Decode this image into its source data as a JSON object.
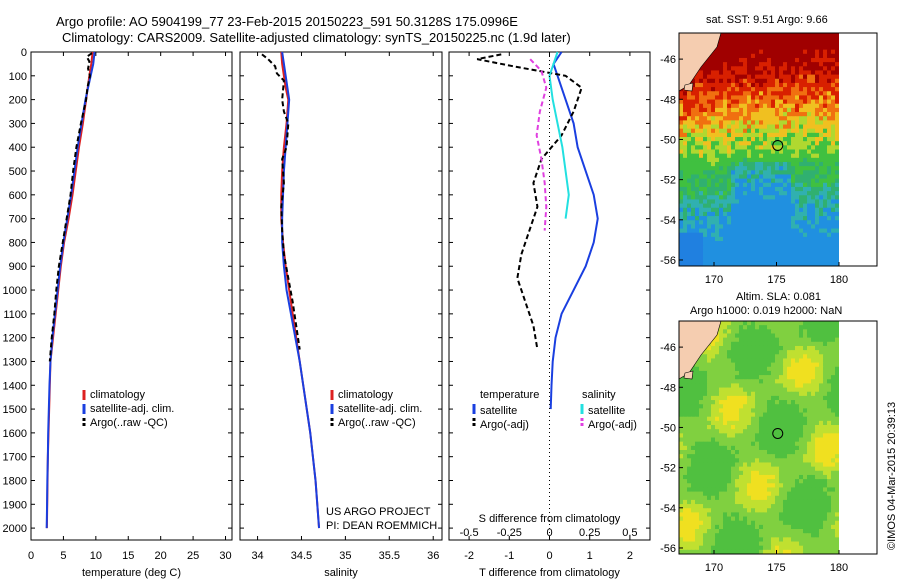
{
  "header": {
    "line1": "Argo profile: AO 5904199_77 23-Feb-2015 20150223_591 50.3128S 175.0996E",
    "line2": "Climatology: CARS2009. Satellite-adjusted climatology: synTS_20150225.nc (1.9d later)"
  },
  "colors": {
    "climatology": "#dd2020",
    "satellite_adj": "#1a3fe0",
    "argo": "#000000",
    "salinity_satellite": "#22e0e0",
    "salinity_argo": "#e040e0"
  },
  "chart_data": [
    {
      "type": "line",
      "xlabel": "temperature (deg C)",
      "xlim": [
        0,
        31
      ],
      "xticks": [
        "0",
        "5",
        "10",
        "15",
        "20",
        "25",
        "30"
      ],
      "ylim": [
        2050,
        0
      ],
      "yticks": [
        "0",
        "100",
        "200",
        "300",
        "400",
        "500",
        "600",
        "700",
        "800",
        "900",
        "1000",
        "1100",
        "1200",
        "1300",
        "1400",
        "1500",
        "1600",
        "1700",
        "1800",
        "1900",
        "2000"
      ],
      "legend": [
        "climatology",
        "satellite-adj. clim.",
        "Argo(..raw -QC)"
      ],
      "series": [
        {
          "name": "climatology",
          "points": [
            [
              9.5,
              0
            ],
            [
              9.3,
              50
            ],
            [
              9.0,
              100
            ],
            [
              8.5,
              200
            ],
            [
              8.0,
              300
            ],
            [
              7.4,
              400
            ],
            [
              6.9,
              500
            ],
            [
              6.4,
              600
            ],
            [
              5.8,
              700
            ],
            [
              5.1,
              800
            ],
            [
              4.6,
              900
            ],
            [
              4.2,
              1000
            ],
            [
              3.8,
              1100
            ],
            [
              3.4,
              1200
            ],
            [
              3.0,
              1300
            ],
            [
              2.9,
              1400
            ],
            [
              2.8,
              1500
            ],
            [
              2.7,
              1600
            ],
            [
              2.6,
              1700
            ],
            [
              2.55,
              1800
            ],
            [
              2.5,
              1900
            ],
            [
              2.45,
              2000
            ]
          ]
        },
        {
          "name": "satellite-adj. clim.",
          "points": [
            [
              9.8,
              0
            ],
            [
              9.6,
              50
            ],
            [
              9.2,
              100
            ],
            [
              8.4,
              200
            ],
            [
              7.8,
              300
            ],
            [
              7.2,
              400
            ],
            [
              6.7,
              500
            ],
            [
              6.2,
              600
            ],
            [
              5.6,
              700
            ],
            [
              5.0,
              800
            ],
            [
              4.5,
              900
            ],
            [
              4.1,
              1000
            ],
            [
              3.7,
              1100
            ],
            [
              3.3,
              1200
            ],
            [
              3.0,
              1300
            ],
            [
              2.85,
              1400
            ],
            [
              2.75,
              1500
            ],
            [
              2.65,
              1600
            ],
            [
              2.6,
              1700
            ],
            [
              2.52,
              1800
            ],
            [
              2.48,
              1900
            ],
            [
              2.42,
              2000
            ]
          ]
        },
        {
          "name": "Argo(..raw -QC)",
          "points": [
            [
              9.4,
              5
            ],
            [
              8.6,
              20
            ],
            [
              9.0,
              40
            ],
            [
              8.8,
              70
            ],
            [
              9.1,
              100
            ],
            [
              8.7,
              150
            ],
            [
              8.5,
              200
            ],
            [
              7.7,
              300
            ],
            [
              7.0,
              400
            ],
            [
              6.5,
              500
            ],
            [
              6.1,
              600
            ],
            [
              5.5,
              700
            ],
            [
              4.9,
              800
            ],
            [
              4.3,
              900
            ],
            [
              3.9,
              1000
            ],
            [
              3.6,
              1100
            ],
            [
              3.2,
              1200
            ],
            [
              2.9,
              1300
            ]
          ]
        }
      ]
    },
    {
      "type": "line",
      "xlabel": "salinity",
      "xlim": [
        33.8,
        36.1
      ],
      "xticks": [
        "34",
        "34.5",
        "35",
        "35.5",
        "36"
      ],
      "ylim": [
        2050,
        0
      ],
      "legend": [
        "climatology",
        "satellite-adj. clim.",
        "Argo(..raw -QC)"
      ],
      "annotations": [
        "US ARGO PROJECT",
        "PI: DEAN ROEMMICH"
      ],
      "series": [
        {
          "name": "climatology",
          "points": [
            [
              34.27,
              0
            ],
            [
              34.28,
              50
            ],
            [
              34.3,
              100
            ],
            [
              34.32,
              150
            ],
            [
              34.35,
              200
            ],
            [
              34.33,
              300
            ],
            [
              34.3,
              400
            ],
            [
              34.28,
              500
            ],
            [
              34.27,
              600
            ],
            [
              34.27,
              700
            ],
            [
              34.29,
              800
            ],
            [
              34.32,
              900
            ],
            [
              34.36,
              1000
            ],
            [
              34.4,
              1100
            ],
            [
              34.44,
              1200
            ],
            [
              34.48,
              1300
            ],
            [
              34.52,
              1400
            ],
            [
              34.56,
              1500
            ],
            [
              34.6,
              1600
            ],
            [
              34.63,
              1700
            ],
            [
              34.66,
              1800
            ],
            [
              34.68,
              1900
            ],
            [
              34.7,
              2000
            ]
          ]
        },
        {
          "name": "satellite-adj. clim.",
          "points": [
            [
              34.28,
              0
            ],
            [
              34.3,
              50
            ],
            [
              34.32,
              100
            ],
            [
              34.36,
              200
            ],
            [
              34.34,
              300
            ],
            [
              34.32,
              400
            ],
            [
              34.3,
              500
            ],
            [
              34.29,
              600
            ],
            [
              34.28,
              700
            ],
            [
              34.28,
              800
            ],
            [
              34.3,
              900
            ],
            [
              34.33,
              1000
            ],
            [
              34.38,
              1100
            ],
            [
              34.43,
              1200
            ],
            [
              34.48,
              1300
            ],
            [
              34.52,
              1400
            ],
            [
              34.56,
              1500
            ],
            [
              34.6,
              1600
            ],
            [
              34.63,
              1700
            ],
            [
              34.66,
              1800
            ],
            [
              34.68,
              1900
            ],
            [
              34.7,
              2000
            ]
          ]
        },
        {
          "name": "Argo(..raw -QC)",
          "points": [
            [
              34.05,
              10
            ],
            [
              34.12,
              30
            ],
            [
              34.2,
              60
            ],
            [
              34.22,
              90
            ],
            [
              34.3,
              120
            ],
            [
              34.28,
              200
            ],
            [
              34.3,
              250
            ],
            [
              34.35,
              300
            ],
            [
              34.33,
              400
            ],
            [
              34.28,
              450
            ],
            [
              34.3,
              550
            ],
            [
              34.27,
              650
            ],
            [
              34.28,
              750
            ],
            [
              34.3,
              850
            ],
            [
              34.35,
              950
            ],
            [
              34.4,
              1050
            ],
            [
              34.44,
              1150
            ],
            [
              34.48,
              1250
            ]
          ]
        }
      ]
    },
    {
      "type": "line",
      "xlabel": "T difference from climatology",
      "xlabel_top": "S difference from climatology",
      "xlim": [
        -2.5,
        2.5
      ],
      "xticks": [
        "-2",
        "-1",
        "0",
        "1",
        "2"
      ],
      "xticks_top": [
        "-0.5",
        "-0.25",
        "0",
        "0.25",
        "0.5"
      ],
      "ylim": [
        2050,
        0
      ],
      "legend_groups": [
        {
          "title": "temperature",
          "items": [
            "satellite",
            "Argo(-adj)"
          ]
        },
        {
          "title": "salinity",
          "items": [
            "satellite",
            "Argo(-adj)"
          ]
        }
      ],
      "series": [
        {
          "name": "temperature satellite",
          "points": [
            [
              0.3,
              0
            ],
            [
              0.1,
              50
            ],
            [
              0.2,
              100
            ],
            [
              0.4,
              200
            ],
            [
              0.6,
              300
            ],
            [
              0.7,
              400
            ],
            [
              0.9,
              500
            ],
            [
              1.1,
              600
            ],
            [
              1.2,
              700
            ],
            [
              1.1,
              800
            ],
            [
              0.9,
              900
            ],
            [
              0.6,
              1000
            ],
            [
              0.3,
              1100
            ],
            [
              0.15,
              1200
            ],
            [
              0.08,
              1300
            ],
            [
              0.05,
              1400
            ],
            [
              0.03,
              1500
            ]
          ]
        },
        {
          "name": "temperature Argo(-adj)",
          "points": [
            [
              -1.2,
              10
            ],
            [
              -1.8,
              30
            ],
            [
              -0.9,
              60
            ],
            [
              0.4,
              100
            ],
            [
              0.8,
              150
            ],
            [
              0.6,
              250
            ],
            [
              0.3,
              350
            ],
            [
              -0.2,
              450
            ],
            [
              -0.4,
              550
            ],
            [
              -0.3,
              650
            ],
            [
              -0.5,
              750
            ],
            [
              -0.7,
              850
            ],
            [
              -0.8,
              950
            ],
            [
              -0.6,
              1050
            ],
            [
              -0.4,
              1150
            ],
            [
              -0.3,
              1250
            ]
          ]
        },
        {
          "name": "salinity satellite",
          "points": [
            [
              0.05,
              0
            ],
            [
              0.0,
              100
            ],
            [
              0.02,
              200
            ],
            [
              0.05,
              300
            ],
            [
              0.08,
              400
            ],
            [
              0.1,
              500
            ],
            [
              0.12,
              600
            ],
            [
              0.1,
              700
            ]
          ]
        },
        {
          "name": "salinity Argo(-adj)",
          "points": [
            [
              -0.12,
              30
            ],
            [
              -0.05,
              80
            ],
            [
              -0.02,
              150
            ],
            [
              -0.06,
              250
            ],
            [
              -0.08,
              350
            ],
            [
              -0.05,
              450
            ],
            [
              -0.03,
              550
            ],
            [
              -0.02,
              650
            ],
            [
              -0.03,
              750
            ]
          ]
        }
      ]
    },
    {
      "type": "heatmap",
      "title": "sat. SST: 9.51  Argo: 9.66",
      "xticks": [
        "170",
        "175",
        "180"
      ],
      "yticks": [
        "-46",
        "-48",
        "-50",
        "-52",
        "-54",
        "-56"
      ]
    },
    {
      "type": "heatmap",
      "title_lines": [
        "Altim. SLA: 0.081",
        "Argo h1000: 0.019 h2000: NaN"
      ],
      "xticks": [
        "170",
        "175",
        "180"
      ],
      "yticks": [
        "-46",
        "-48",
        "-50",
        "-52",
        "-54",
        "-56"
      ]
    }
  ],
  "footer": {
    "vertical_stamp": "©IMOS 04-Mar-2015 20:39:13"
  }
}
